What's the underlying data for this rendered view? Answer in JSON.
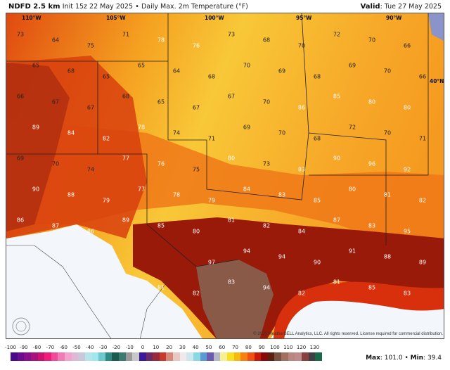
{
  "header": {
    "model": "NDFD 2.5 km",
    "init": "Init 15z 22 May 2025",
    "separator": "•",
    "product": "Daily Max. 2m Temperature (°F)",
    "valid_label": "Valid",
    "valid_value": ": Tue 27 May 2025"
  },
  "map": {
    "longitude_labels": [
      "110°W",
      "105°W",
      "100°W",
      "95°W",
      "90°W"
    ],
    "latitude_labels": [
      "40°N"
    ],
    "temperature_values": [
      73,
      64,
      75,
      71,
      78,
      76,
      73,
      68,
      70,
      72,
      70,
      66,
      65,
      68,
      65,
      65,
      64,
      68,
      70,
      69,
      68,
      69,
      70,
      66,
      66,
      67,
      67,
      68,
      65,
      67,
      67,
      70,
      86,
      85,
      80,
      80,
      89,
      84,
      82,
      78,
      74,
      71,
      69,
      70,
      68,
      72,
      70,
      71,
      69,
      70,
      74,
      77,
      76,
      75,
      80,
      73,
      83,
      90,
      96,
      92,
      90,
      88,
      79,
      77,
      78,
      79,
      84,
      83,
      85,
      80,
      81,
      82,
      86,
      87,
      86,
      89,
      85,
      80,
      81,
      82,
      84,
      87,
      83,
      95,
      97,
      94,
      94,
      90,
      91,
      88,
      89,
      81,
      82,
      83,
      94,
      82,
      81,
      85,
      83,
      71,
      74,
      76
    ],
    "logo_text": "WeatherBELL",
    "copyright": "© 2025 WeatherBELL Analytics, LLC. All rights reserved. License required for commercial distribution."
  },
  "colorbar": {
    "ticks": [
      "-100",
      "-90",
      "-80",
      "-70",
      "-60",
      "-50",
      "-40",
      "-30",
      "-20",
      "-10",
      "0",
      "10",
      "20",
      "30",
      "40",
      "50",
      "60",
      "70",
      "80",
      "90",
      "100",
      "110",
      "120",
      "130"
    ],
    "colors": [
      "#4b0a8c",
      "#6a0d91",
      "#8a0f8a",
      "#a8127e",
      "#d0106e",
      "#ee1c7a",
      "#f04a9a",
      "#f27ab8",
      "#f2a2cc",
      "#e0b8d4",
      "#c8c8dc",
      "#b6e4ec",
      "#9ee8ee",
      "#6cc8cc",
      "#2e8a84",
      "#1c5a50",
      "#3a7a70",
      "#9a9a9a",
      "#c8c8c8",
      "#3a1a9a",
      "#6a2a6a",
      "#9a2a3a",
      "#c83a2a",
      "#d88a7a",
      "#e8c8c0",
      "#f0e8ea",
      "#cce8ee",
      "#8ad8e4",
      "#5a9ad4",
      "#6a5ab0",
      "#b4b8c8",
      "#f8f090",
      "#f8e020",
      "#f8b810",
      "#f88010",
      "#f05010",
      "#c81808",
      "#8a0a08",
      "#5a2010",
      "#7a5040",
      "#a07060",
      "#b88880",
      "#c08a8a",
      "#8a4040",
      "#404040",
      "#1a6a4a"
    ]
  },
  "stats": {
    "max_label": "Max",
    "max_value": ": 101.0",
    "sep": " • ",
    "min_label": "Min",
    "min_value": ": 39.4"
  }
}
